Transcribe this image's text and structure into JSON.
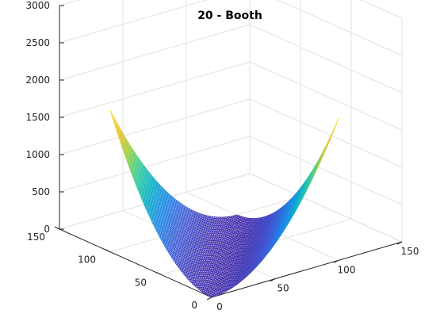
{
  "chart_data": {
    "type": "surface",
    "title": "20 - Booth",
    "xlabel": "",
    "ylabel": "",
    "zlabel": "",
    "x_range": [
      0,
      150
    ],
    "y_range": [
      0,
      150
    ],
    "z_range": [
      0,
      3000
    ],
    "x_ticks": [
      "0",
      "50",
      "100",
      "150"
    ],
    "y_ticks": [
      "0",
      "50",
      "100",
      "150"
    ],
    "z_ticks": [
      "0",
      "500",
      "1000",
      "1500",
      "2000",
      "2500",
      "3000"
    ],
    "surface_x_extent": [
      0,
      100
    ],
    "surface_y_extent": [
      0,
      100
    ],
    "peak_corners": [
      {
        "x": 0,
        "y": 100,
        "z": 1900
      },
      {
        "x": 100,
        "y": 0,
        "z": 1900
      }
    ],
    "min_z": 0,
    "colormap": [
      "#3e26a8",
      "#3f57d3",
      "#1f86e6",
      "#0fb2c8",
      "#3ccf9b",
      "#a6d143",
      "#f2c33a",
      "#f9e32c"
    ],
    "grid": true
  }
}
